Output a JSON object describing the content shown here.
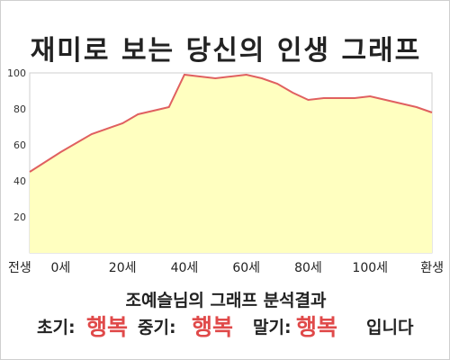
{
  "page": {
    "title": "재미로 보는 당신의 인생 그래프",
    "subtitle": "조예슬님의 그래프 분석결과",
    "result": {
      "early_label": "초기:",
      "early_value": "행복",
      "mid_label": "중기:",
      "mid_value": "행복",
      "late_label": "말기:",
      "late_value": "행복",
      "suffix": "입니다"
    }
  },
  "colors": {
    "area_fill": "#ffffc0",
    "line": "#e06060",
    "highlight": "#e04a4a"
  },
  "chart_data": {
    "type": "area",
    "title": "",
    "xlabel": "",
    "ylabel": "",
    "x": [
      -10,
      0,
      10,
      20,
      25,
      30,
      35,
      40,
      45,
      50,
      55,
      60,
      65,
      70,
      75,
      80,
      85,
      90,
      95,
      100,
      105,
      110,
      115,
      120
    ],
    "values": [
      45,
      56,
      66,
      72,
      77,
      79,
      81,
      99,
      98,
      97,
      98,
      99,
      97,
      94,
      89,
      85,
      86,
      86,
      86,
      87,
      85,
      83,
      81,
      78
    ],
    "x_ticks": [
      {
        "x": -10,
        "label": "전생"
      },
      {
        "x": 0,
        "label": "0세"
      },
      {
        "x": 20,
        "label": "20세"
      },
      {
        "x": 40,
        "label": "40세"
      },
      {
        "x": 60,
        "label": "60세"
      },
      {
        "x": 80,
        "label": "80세"
      },
      {
        "x": 100,
        "label": "100세"
      },
      {
        "x": 120,
        "label": "환생"
      }
    ],
    "y_ticks": [
      20,
      40,
      60,
      80,
      100
    ],
    "xlim": [
      -10,
      120
    ],
    "ylim": [
      0,
      100
    ],
    "grid": false,
    "legend": "none"
  }
}
